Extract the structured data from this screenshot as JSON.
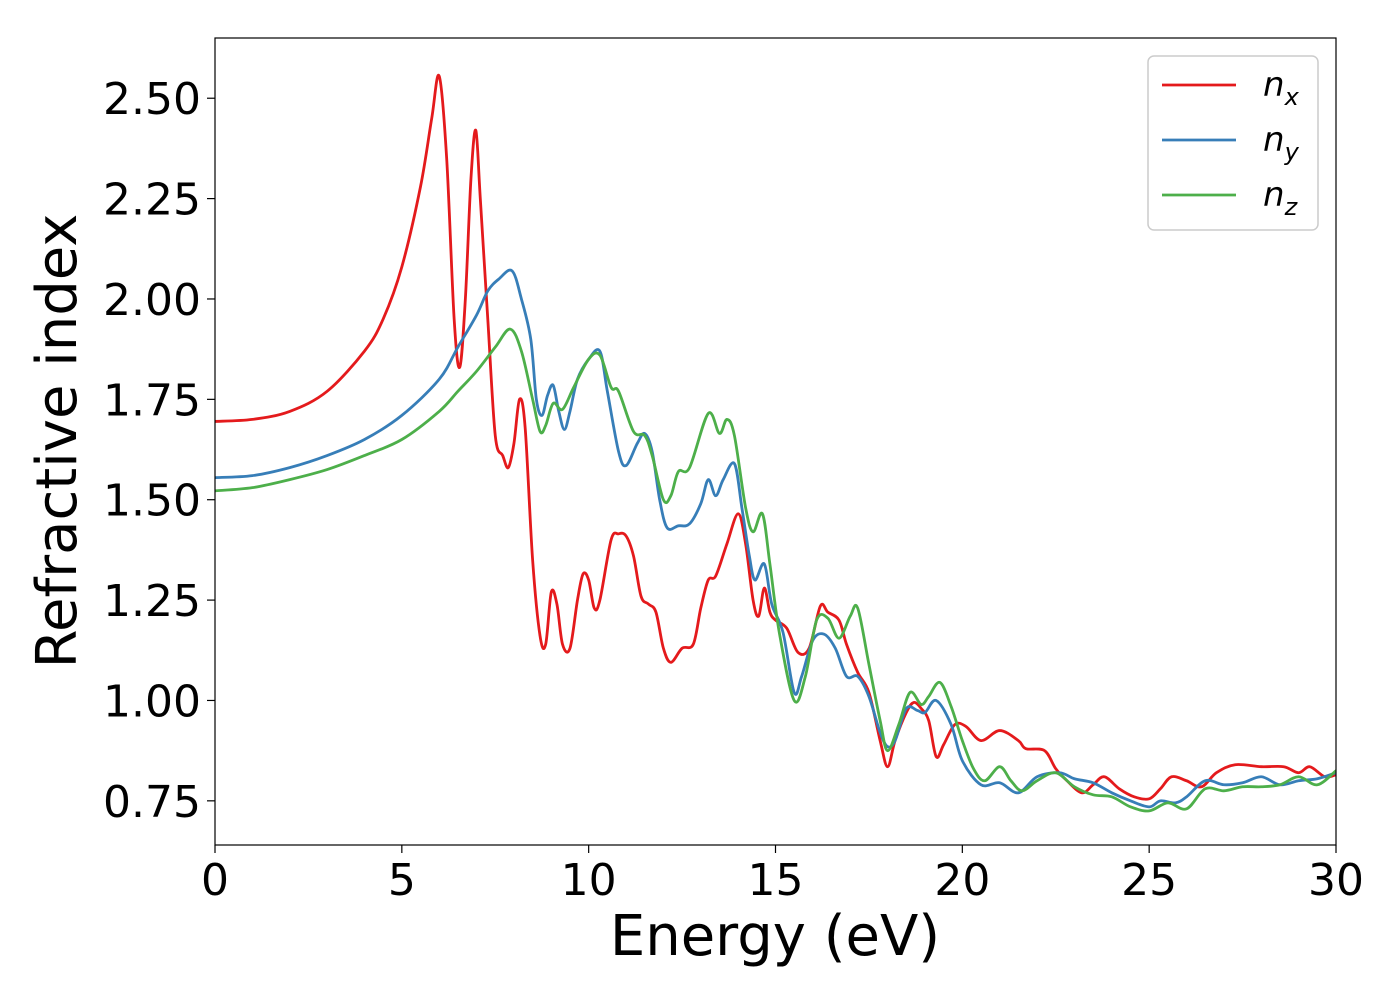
{
  "chart_data": {
    "type": "line",
    "xlabel": "Energy (eV)",
    "ylabel": "Refractive index",
    "xlim": [
      0,
      30
    ],
    "ylim": [
      0.64,
      2.65
    ],
    "xticks": [
      "0",
      "5",
      "10",
      "15",
      "20",
      "25",
      "30"
    ],
    "yticks": [
      "0.75",
      "1.00",
      "1.25",
      "1.50",
      "1.75",
      "2.00",
      "2.25",
      "2.50"
    ],
    "grid": false,
    "legend_position": "top-right",
    "series": [
      {
        "name": "n",
        "sub": "x",
        "color": "#e41a1c",
        "points": [
          [
            0,
            1.695
          ],
          [
            1,
            1.7
          ],
          [
            2,
            1.72
          ],
          [
            3,
            1.77
          ],
          [
            4,
            1.87
          ],
          [
            4.5,
            1.95
          ],
          [
            5,
            2.08
          ],
          [
            5.5,
            2.28
          ],
          [
            5.8,
            2.45
          ],
          [
            6.0,
            2.555
          ],
          [
            6.2,
            2.35
          ],
          [
            6.4,
            1.95
          ],
          [
            6.55,
            1.83
          ],
          [
            6.7,
            2.0
          ],
          [
            6.85,
            2.3
          ],
          [
            6.98,
            2.42
          ],
          [
            7.1,
            2.25
          ],
          [
            7.3,
            1.95
          ],
          [
            7.5,
            1.66
          ],
          [
            7.7,
            1.61
          ],
          [
            7.85,
            1.58
          ],
          [
            8.0,
            1.64
          ],
          [
            8.15,
            1.75
          ],
          [
            8.3,
            1.68
          ],
          [
            8.5,
            1.35
          ],
          [
            8.7,
            1.16
          ],
          [
            8.85,
            1.14
          ],
          [
            9.0,
            1.27
          ],
          [
            9.15,
            1.24
          ],
          [
            9.3,
            1.14
          ],
          [
            9.5,
            1.13
          ],
          [
            9.7,
            1.25
          ],
          [
            9.85,
            1.315
          ],
          [
            10.0,
            1.3
          ],
          [
            10.15,
            1.23
          ],
          [
            10.3,
            1.25
          ],
          [
            10.6,
            1.4
          ],
          [
            10.8,
            1.415
          ],
          [
            11.0,
            1.41
          ],
          [
            11.2,
            1.36
          ],
          [
            11.4,
            1.26
          ],
          [
            11.6,
            1.24
          ],
          [
            11.8,
            1.22
          ],
          [
            12.0,
            1.13
          ],
          [
            12.2,
            1.095
          ],
          [
            12.5,
            1.13
          ],
          [
            12.8,
            1.14
          ],
          [
            13.0,
            1.23
          ],
          [
            13.2,
            1.3
          ],
          [
            13.4,
            1.31
          ],
          [
            13.7,
            1.39
          ],
          [
            14.0,
            1.465
          ],
          [
            14.2,
            1.39
          ],
          [
            14.4,
            1.25
          ],
          [
            14.55,
            1.21
          ],
          [
            14.7,
            1.28
          ],
          [
            14.85,
            1.22
          ],
          [
            15.0,
            1.2
          ],
          [
            15.3,
            1.18
          ],
          [
            15.6,
            1.12
          ],
          [
            15.9,
            1.13
          ],
          [
            16.2,
            1.235
          ],
          [
            16.4,
            1.22
          ],
          [
            16.7,
            1.2
          ],
          [
            16.9,
            1.14
          ],
          [
            17.2,
            1.07
          ],
          [
            17.5,
            1.02
          ],
          [
            17.8,
            0.9
          ],
          [
            18.0,
            0.835
          ],
          [
            18.2,
            0.9
          ],
          [
            18.5,
            0.97
          ],
          [
            18.7,
            0.995
          ],
          [
            18.9,
            0.98
          ],
          [
            19.1,
            0.95
          ],
          [
            19.3,
            0.86
          ],
          [
            19.5,
            0.89
          ],
          [
            19.8,
            0.94
          ],
          [
            20.1,
            0.935
          ],
          [
            20.5,
            0.9
          ],
          [
            21.0,
            0.925
          ],
          [
            21.5,
            0.9
          ],
          [
            21.7,
            0.88
          ],
          [
            22.2,
            0.875
          ],
          [
            22.5,
            0.83
          ],
          [
            22.8,
            0.8
          ],
          [
            23.2,
            0.77
          ],
          [
            23.5,
            0.79
          ],
          [
            23.8,
            0.81
          ],
          [
            24.2,
            0.78
          ],
          [
            24.6,
            0.76
          ],
          [
            25.0,
            0.755
          ],
          [
            25.3,
            0.78
          ],
          [
            25.6,
            0.81
          ],
          [
            26.0,
            0.8
          ],
          [
            26.4,
            0.785
          ],
          [
            26.8,
            0.82
          ],
          [
            27.3,
            0.84
          ],
          [
            28.0,
            0.835
          ],
          [
            28.6,
            0.835
          ],
          [
            29.0,
            0.82
          ],
          [
            29.3,
            0.835
          ],
          [
            29.7,
            0.81
          ],
          [
            30.0,
            0.815
          ]
        ]
      },
      {
        "name": "n",
        "sub": "y",
        "color": "#377eb8",
        "points": [
          [
            0,
            1.555
          ],
          [
            1,
            1.56
          ],
          [
            2,
            1.58
          ],
          [
            3,
            1.61
          ],
          [
            4,
            1.65
          ],
          [
            5,
            1.71
          ],
          [
            6,
            1.8
          ],
          [
            6.5,
            1.88
          ],
          [
            7.0,
            1.96
          ],
          [
            7.3,
            2.02
          ],
          [
            7.6,
            2.05
          ],
          [
            7.95,
            2.07
          ],
          [
            8.2,
            2.0
          ],
          [
            8.45,
            1.9
          ],
          [
            8.6,
            1.75
          ],
          [
            8.75,
            1.71
          ],
          [
            8.9,
            1.76
          ],
          [
            9.05,
            1.785
          ],
          [
            9.2,
            1.72
          ],
          [
            9.35,
            1.675
          ],
          [
            9.5,
            1.72
          ],
          [
            9.7,
            1.8
          ],
          [
            10.0,
            1.85
          ],
          [
            10.3,
            1.87
          ],
          [
            10.5,
            1.77
          ],
          [
            10.8,
            1.62
          ],
          [
            11.0,
            1.585
          ],
          [
            11.3,
            1.64
          ],
          [
            11.5,
            1.665
          ],
          [
            11.7,
            1.62
          ],
          [
            11.9,
            1.5
          ],
          [
            12.1,
            1.43
          ],
          [
            12.4,
            1.435
          ],
          [
            12.7,
            1.44
          ],
          [
            13.0,
            1.49
          ],
          [
            13.2,
            1.55
          ],
          [
            13.4,
            1.51
          ],
          [
            13.6,
            1.55
          ],
          [
            13.9,
            1.59
          ],
          [
            14.1,
            1.48
          ],
          [
            14.3,
            1.36
          ],
          [
            14.45,
            1.3
          ],
          [
            14.7,
            1.34
          ],
          [
            14.9,
            1.24
          ],
          [
            15.2,
            1.17
          ],
          [
            15.5,
            1.02
          ],
          [
            15.7,
            1.06
          ],
          [
            16.0,
            1.15
          ],
          [
            16.3,
            1.165
          ],
          [
            16.6,
            1.13
          ],
          [
            16.9,
            1.06
          ],
          [
            17.2,
            1.06
          ],
          [
            17.5,
            1.01
          ],
          [
            17.8,
            0.92
          ],
          [
            18.0,
            0.885
          ],
          [
            18.2,
            0.9
          ],
          [
            18.5,
            0.98
          ],
          [
            18.8,
            0.975
          ],
          [
            19.0,
            0.97
          ],
          [
            19.3,
            1.0
          ],
          [
            19.7,
            0.94
          ],
          [
            20.0,
            0.85
          ],
          [
            20.5,
            0.79
          ],
          [
            21.0,
            0.795
          ],
          [
            21.5,
            0.77
          ],
          [
            22.0,
            0.81
          ],
          [
            22.6,
            0.82
          ],
          [
            23.0,
            0.805
          ],
          [
            23.5,
            0.795
          ],
          [
            24.0,
            0.77
          ],
          [
            24.5,
            0.75
          ],
          [
            25.0,
            0.735
          ],
          [
            25.3,
            0.75
          ],
          [
            25.7,
            0.745
          ],
          [
            26.0,
            0.76
          ],
          [
            26.5,
            0.8
          ],
          [
            27.0,
            0.79
          ],
          [
            27.5,
            0.795
          ],
          [
            28.0,
            0.81
          ],
          [
            28.5,
            0.79
          ],
          [
            29.0,
            0.8
          ],
          [
            29.5,
            0.805
          ],
          [
            30.0,
            0.82
          ]
        ]
      },
      {
        "name": "n",
        "sub": "z",
        "color": "#4daf4a",
        "points": [
          [
            0,
            1.522
          ],
          [
            1,
            1.53
          ],
          [
            2,
            1.55
          ],
          [
            3,
            1.575
          ],
          [
            4,
            1.61
          ],
          [
            5,
            1.65
          ],
          [
            6,
            1.72
          ],
          [
            6.5,
            1.77
          ],
          [
            7.0,
            1.82
          ],
          [
            7.5,
            1.88
          ],
          [
            7.9,
            1.925
          ],
          [
            8.2,
            1.87
          ],
          [
            8.5,
            1.75
          ],
          [
            8.7,
            1.67
          ],
          [
            8.85,
            1.685
          ],
          [
            9.05,
            1.74
          ],
          [
            9.3,
            1.725
          ],
          [
            9.6,
            1.78
          ],
          [
            10.0,
            1.85
          ],
          [
            10.3,
            1.86
          ],
          [
            10.6,
            1.78
          ],
          [
            10.8,
            1.77
          ],
          [
            11.2,
            1.67
          ],
          [
            11.5,
            1.66
          ],
          [
            11.7,
            1.61
          ],
          [
            12.0,
            1.5
          ],
          [
            12.2,
            1.51
          ],
          [
            12.4,
            1.57
          ],
          [
            12.7,
            1.58
          ],
          [
            13.2,
            1.715
          ],
          [
            13.5,
            1.665
          ],
          [
            13.7,
            1.7
          ],
          [
            13.9,
            1.66
          ],
          [
            14.2,
            1.48
          ],
          [
            14.4,
            1.42
          ],
          [
            14.65,
            1.465
          ],
          [
            14.85,
            1.34
          ],
          [
            15.1,
            1.17
          ],
          [
            15.5,
            1.0
          ],
          [
            15.8,
            1.06
          ],
          [
            16.1,
            1.2
          ],
          [
            16.4,
            1.205
          ],
          [
            16.7,
            1.155
          ],
          [
            17.0,
            1.21
          ],
          [
            17.2,
            1.23
          ],
          [
            17.5,
            1.09
          ],
          [
            17.8,
            0.95
          ],
          [
            18.0,
            0.875
          ],
          [
            18.3,
            0.94
          ],
          [
            18.6,
            1.02
          ],
          [
            18.9,
            0.99
          ],
          [
            19.1,
            1.01
          ],
          [
            19.4,
            1.045
          ],
          [
            19.7,
            0.985
          ],
          [
            20.0,
            0.9
          ],
          [
            20.3,
            0.83
          ],
          [
            20.6,
            0.8
          ],
          [
            21.0,
            0.835
          ],
          [
            21.3,
            0.8
          ],
          [
            21.6,
            0.775
          ],
          [
            22.0,
            0.8
          ],
          [
            22.5,
            0.82
          ],
          [
            23.0,
            0.785
          ],
          [
            23.5,
            0.765
          ],
          [
            24.0,
            0.76
          ],
          [
            24.5,
            0.735
          ],
          [
            25.0,
            0.725
          ],
          [
            25.5,
            0.745
          ],
          [
            26.0,
            0.73
          ],
          [
            26.5,
            0.78
          ],
          [
            27.0,
            0.775
          ],
          [
            27.5,
            0.785
          ],
          [
            28.0,
            0.785
          ],
          [
            28.5,
            0.79
          ],
          [
            29.0,
            0.81
          ],
          [
            29.5,
            0.79
          ],
          [
            30.0,
            0.825
          ]
        ]
      }
    ]
  }
}
